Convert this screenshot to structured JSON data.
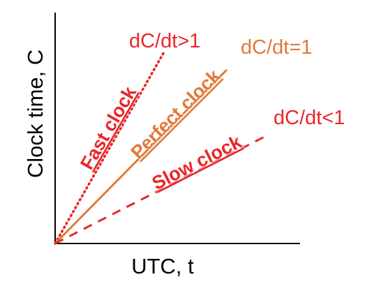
{
  "colors": {
    "fast": "#e8262a",
    "perfect": "#e07a3a",
    "slow": "#e8262a",
    "axis": "#000000"
  },
  "axes": {
    "xlabel": "UTC, t",
    "ylabel": "Clock time, C"
  },
  "lines": {
    "fast": {
      "label": "Fast clock",
      "rate": "dC/dt>1",
      "style": "dotted"
    },
    "perfect": {
      "label": "Perfect clock",
      "rate": "dC/dt=1",
      "style": "solid"
    },
    "slow": {
      "label": "Slow clock",
      "rate": "dC/dt<1",
      "style": "dashed"
    }
  }
}
